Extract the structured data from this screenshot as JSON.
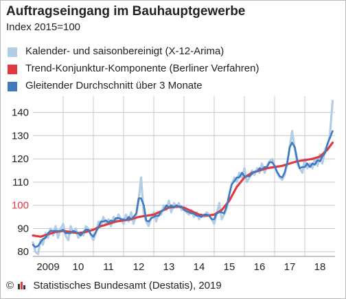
{
  "title": "Auftragseingang im Bauhauptgewerbe",
  "subtitle": "Index 2015=100",
  "footer": {
    "copyright": "©",
    "source": "Statistisches Bundesamt (Destatis), 2019"
  },
  "colors": {
    "seasonal": "#b3cde6",
    "trend": "#e0393e",
    "moving_avg": "#3f7ac0",
    "grid": "#c8c8c8",
    "axis_text": "#222222",
    "highlight_text": "#e0393e"
  },
  "chart_data": {
    "type": "line",
    "title": "Auftragseingang im Bauhauptgewerbe",
    "ylabel": "Index 2015=100",
    "ylim": [
      78,
      147
    ],
    "yticks": [
      80,
      90,
      100,
      110,
      120,
      130,
      140
    ],
    "highlight_tick": 100,
    "xlim": [
      2009.0,
      2019.0
    ],
    "xticks": [
      {
        "label": "2009",
        "value": 2009.5
      },
      {
        "label": "10",
        "value": 2010.5
      },
      {
        "label": "11",
        "value": 2011.5
      },
      {
        "label": "12",
        "value": 2012.5
      },
      {
        "label": "13",
        "value": 2013.5
      },
      {
        "label": "14",
        "value": 2014.5
      },
      {
        "label": "15",
        "value": 2015.5
      },
      {
        "label": "16",
        "value": 2016.5
      },
      {
        "label": "17",
        "value": 2017.5
      },
      {
        "label": "18",
        "value": 2018.5
      }
    ],
    "grid": true,
    "legend_position": "top-left",
    "series": [
      {
        "name": "Kalender- und saisonbereinigt (X-12-Arima)",
        "points": [
          [
            2009.0,
            84
          ],
          [
            2009.08,
            80
          ],
          [
            2009.17,
            79
          ],
          [
            2009.25,
            85
          ],
          [
            2009.33,
            83
          ],
          [
            2009.42,
            88
          ],
          [
            2009.5,
            86
          ],
          [
            2009.58,
            90
          ],
          [
            2009.67,
            87
          ],
          [
            2009.75,
            91
          ],
          [
            2009.83,
            86
          ],
          [
            2009.92,
            90
          ],
          [
            2010.0,
            92
          ],
          [
            2010.08,
            87
          ],
          [
            2010.17,
            85
          ],
          [
            2010.25,
            91
          ],
          [
            2010.33,
            88
          ],
          [
            2010.42,
            90
          ],
          [
            2010.5,
            86
          ],
          [
            2010.58,
            88
          ],
          [
            2010.67,
            87
          ],
          [
            2010.75,
            91
          ],
          [
            2010.83,
            90
          ],
          [
            2010.92,
            87
          ],
          [
            2011.0,
            85
          ],
          [
            2011.08,
            88
          ],
          [
            2011.17,
            93
          ],
          [
            2011.25,
            91
          ],
          [
            2011.33,
            95
          ],
          [
            2011.42,
            92
          ],
          [
            2011.5,
            94
          ],
          [
            2011.58,
            91
          ],
          [
            2011.67,
            95
          ],
          [
            2011.75,
            93
          ],
          [
            2011.83,
            96
          ],
          [
            2011.92,
            94
          ],
          [
            2012.0,
            92
          ],
          [
            2012.08,
            96
          ],
          [
            2012.17,
            93
          ],
          [
            2012.25,
            97
          ],
          [
            2012.33,
            92
          ],
          [
            2012.42,
            96
          ],
          [
            2012.5,
            102
          ],
          [
            2012.58,
            112
          ],
          [
            2012.67,
            96
          ],
          [
            2012.75,
            93
          ],
          [
            2012.83,
            91
          ],
          [
            2012.92,
            95
          ],
          [
            2013.0,
            97
          ],
          [
            2013.08,
            93
          ],
          [
            2013.17,
            97
          ],
          [
            2013.25,
            96
          ],
          [
            2013.33,
            100
          ],
          [
            2013.42,
            98
          ],
          [
            2013.5,
            102
          ],
          [
            2013.58,
            97
          ],
          [
            2013.67,
            101
          ],
          [
            2013.75,
            99
          ],
          [
            2013.83,
            101
          ],
          [
            2013.92,
            98
          ],
          [
            2014.0,
            99
          ],
          [
            2014.08,
            97
          ],
          [
            2014.17,
            96
          ],
          [
            2014.25,
            98
          ],
          [
            2014.33,
            95
          ],
          [
            2014.42,
            97
          ],
          [
            2014.5,
            94
          ],
          [
            2014.58,
            96
          ],
          [
            2014.67,
            95
          ],
          [
            2014.75,
            97
          ],
          [
            2014.83,
            96
          ],
          [
            2014.92,
            94
          ],
          [
            2015.0,
            92
          ],
          [
            2015.08,
            96
          ],
          [
            2015.17,
            101
          ],
          [
            2015.25,
            94
          ],
          [
            2015.33,
            96
          ],
          [
            2015.42,
            99
          ],
          [
            2015.5,
            105
          ],
          [
            2015.58,
            109
          ],
          [
            2015.67,
            112
          ],
          [
            2015.75,
            110
          ],
          [
            2015.83,
            114
          ],
          [
            2015.92,
            112
          ],
          [
            2016.0,
            116
          ],
          [
            2016.08,
            110
          ],
          [
            2016.17,
            112
          ],
          [
            2016.25,
            115
          ],
          [
            2016.33,
            113
          ],
          [
            2016.42,
            116
          ],
          [
            2016.5,
            114
          ],
          [
            2016.58,
            118
          ],
          [
            2016.67,
            114
          ],
          [
            2016.75,
            117
          ],
          [
            2016.83,
            119
          ],
          [
            2016.92,
            120
          ],
          [
            2017.0,
            117
          ],
          [
            2017.08,
            114
          ],
          [
            2017.17,
            112
          ],
          [
            2017.25,
            111
          ],
          [
            2017.33,
            113
          ],
          [
            2017.42,
            118
          ],
          [
            2017.5,
            125
          ],
          [
            2017.58,
            132
          ],
          [
            2017.67,
            124
          ],
          [
            2017.75,
            118
          ],
          [
            2017.83,
            116
          ],
          [
            2017.92,
            114
          ],
          [
            2018.0,
            120
          ],
          [
            2018.08,
            116
          ],
          [
            2018.17,
            118
          ],
          [
            2018.25,
            116
          ],
          [
            2018.33,
            120
          ],
          [
            2018.42,
            117
          ],
          [
            2018.5,
            122
          ],
          [
            2018.58,
            118
          ],
          [
            2018.67,
            124
          ],
          [
            2018.75,
            126
          ],
          [
            2018.83,
            130
          ],
          [
            2018.92,
            145
          ]
        ]
      },
      {
        "name": "Trend-Konjunktur-Komponente (Berliner Verfahren)",
        "points": [
          [
            2009.0,
            87
          ],
          [
            2009.25,
            86.5
          ],
          [
            2009.5,
            87.5
          ],
          [
            2009.75,
            88.5
          ],
          [
            2010.0,
            89
          ],
          [
            2010.25,
            88.5
          ],
          [
            2010.5,
            88
          ],
          [
            2010.75,
            88.5
          ],
          [
            2011.0,
            89.5
          ],
          [
            2011.25,
            91
          ],
          [
            2011.5,
            92
          ],
          [
            2011.75,
            93
          ],
          [
            2012.0,
            93.5
          ],
          [
            2012.25,
            94
          ],
          [
            2012.5,
            95
          ],
          [
            2012.75,
            95.5
          ],
          [
            2013.0,
            96
          ],
          [
            2013.25,
            97.5
          ],
          [
            2013.5,
            99
          ],
          [
            2013.75,
            99.5
          ],
          [
            2014.0,
            99
          ],
          [
            2014.25,
            97.5
          ],
          [
            2014.5,
            96
          ],
          [
            2014.75,
            95.5
          ],
          [
            2015.0,
            96
          ],
          [
            2015.25,
            98
          ],
          [
            2015.5,
            102
          ],
          [
            2015.75,
            108
          ],
          [
            2016.0,
            112
          ],
          [
            2016.25,
            114
          ],
          [
            2016.5,
            115
          ],
          [
            2016.75,
            116
          ],
          [
            2017.0,
            116.5
          ],
          [
            2017.25,
            117
          ],
          [
            2017.5,
            118
          ],
          [
            2017.75,
            119
          ],
          [
            2018.0,
            119.5
          ],
          [
            2018.25,
            120
          ],
          [
            2018.5,
            121
          ],
          [
            2018.75,
            124
          ],
          [
            2018.92,
            127
          ]
        ]
      },
      {
        "name": "Gleitender Durchschnitt über 3 Monate",
        "points": [
          [
            2009.0,
            83
          ],
          [
            2009.08,
            82
          ],
          [
            2009.17,
            82.5
          ],
          [
            2009.25,
            84
          ],
          [
            2009.33,
            85.5
          ],
          [
            2009.42,
            86
          ],
          [
            2009.5,
            88
          ],
          [
            2009.58,
            89
          ],
          [
            2009.67,
            89
          ],
          [
            2009.75,
            89
          ],
          [
            2009.83,
            89
          ],
          [
            2009.92,
            89
          ],
          [
            2010.0,
            89.5
          ],
          [
            2010.08,
            88
          ],
          [
            2010.17,
            88
          ],
          [
            2010.25,
            88
          ],
          [
            2010.33,
            89
          ],
          [
            2010.42,
            88.5
          ],
          [
            2010.5,
            88
          ],
          [
            2010.58,
            87
          ],
          [
            2010.67,
            88.5
          ],
          [
            2010.75,
            89.5
          ],
          [
            2010.83,
            89.5
          ],
          [
            2010.92,
            87.5
          ],
          [
            2011.0,
            86.5
          ],
          [
            2011.08,
            88.5
          ],
          [
            2011.17,
            90.5
          ],
          [
            2011.25,
            93
          ],
          [
            2011.33,
            93
          ],
          [
            2011.42,
            93.5
          ],
          [
            2011.5,
            92.5
          ],
          [
            2011.58,
            93.5
          ],
          [
            2011.67,
            93
          ],
          [
            2011.75,
            94.5
          ],
          [
            2011.83,
            94.5
          ],
          [
            2011.92,
            94
          ],
          [
            2012.0,
            94
          ],
          [
            2012.08,
            93.5
          ],
          [
            2012.17,
            95
          ],
          [
            2012.25,
            94
          ],
          [
            2012.33,
            95
          ],
          [
            2012.42,
            96.5
          ],
          [
            2012.5,
            103
          ],
          [
            2012.58,
            103
          ],
          [
            2012.67,
            100
          ],
          [
            2012.75,
            93.5
          ],
          [
            2012.83,
            93
          ],
          [
            2012.92,
            94.5
          ],
          [
            2013.0,
            95
          ],
          [
            2013.08,
            95.5
          ],
          [
            2013.17,
            95.5
          ],
          [
            2013.25,
            97.5
          ],
          [
            2013.33,
            98
          ],
          [
            2013.42,
            100
          ],
          [
            2013.5,
            99
          ],
          [
            2013.58,
            100
          ],
          [
            2013.67,
            99
          ],
          [
            2013.75,
            100
          ],
          [
            2013.83,
            99.5
          ],
          [
            2013.92,
            99.5
          ],
          [
            2014.0,
            98
          ],
          [
            2014.08,
            97.5
          ],
          [
            2014.17,
            97
          ],
          [
            2014.25,
            96.5
          ],
          [
            2014.33,
            96.5
          ],
          [
            2014.42,
            95.5
          ],
          [
            2014.5,
            95.5
          ],
          [
            2014.58,
            95
          ],
          [
            2014.67,
            96
          ],
          [
            2014.75,
            96
          ],
          [
            2014.83,
            95.5
          ],
          [
            2014.92,
            94
          ],
          [
            2015.0,
            94
          ],
          [
            2015.08,
            96.5
          ],
          [
            2015.17,
            97
          ],
          [
            2015.25,
            97
          ],
          [
            2015.33,
            96.5
          ],
          [
            2015.42,
            100
          ],
          [
            2015.5,
            104.5
          ],
          [
            2015.58,
            109
          ],
          [
            2015.67,
            110.5
          ],
          [
            2015.75,
            112
          ],
          [
            2015.83,
            112
          ],
          [
            2015.92,
            114
          ],
          [
            2016.0,
            112.5
          ],
          [
            2016.08,
            112.5
          ],
          [
            2016.17,
            112.5
          ],
          [
            2016.25,
            113.5
          ],
          [
            2016.33,
            114.5
          ],
          [
            2016.42,
            114.5
          ],
          [
            2016.5,
            116
          ],
          [
            2016.58,
            115.5
          ],
          [
            2016.67,
            116.5
          ],
          [
            2016.75,
            116.5
          ],
          [
            2016.83,
            118.5
          ],
          [
            2016.92,
            118.5
          ],
          [
            2017.0,
            117
          ],
          [
            2017.08,
            114.5
          ],
          [
            2017.17,
            112.5
          ],
          [
            2017.25,
            112
          ],
          [
            2017.33,
            114
          ],
          [
            2017.42,
            118.5
          ],
          [
            2017.5,
            125
          ],
          [
            2017.58,
            127
          ],
          [
            2017.67,
            125
          ],
          [
            2017.75,
            119.5
          ],
          [
            2017.83,
            116
          ],
          [
            2017.92,
            116.5
          ],
          [
            2018.0,
            116.5
          ],
          [
            2018.08,
            118
          ],
          [
            2018.17,
            116.5
          ],
          [
            2018.25,
            118
          ],
          [
            2018.33,
            117.5
          ],
          [
            2018.42,
            119.5
          ],
          [
            2018.5,
            119
          ],
          [
            2018.58,
            121
          ],
          [
            2018.67,
            122.5
          ],
          [
            2018.75,
            126.5
          ],
          [
            2018.83,
            129
          ],
          [
            2018.92,
            132
          ]
        ]
      }
    ]
  }
}
